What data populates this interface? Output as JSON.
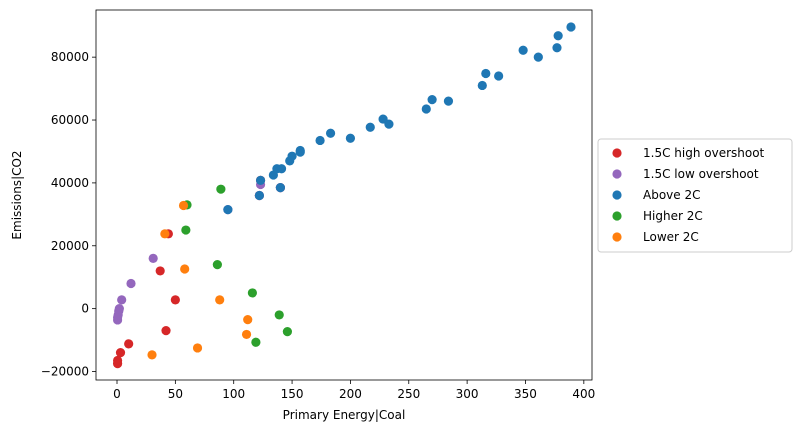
{
  "chart_data": {
    "type": "scatter",
    "title": "",
    "xlabel": "Primary Energy|Coal",
    "ylabel": "Emissions|CO2",
    "xlim": [
      -18,
      407
    ],
    "ylim": [
      -22700,
      95000
    ],
    "xticks": [
      0,
      50,
      100,
      150,
      200,
      250,
      300,
      350,
      400
    ],
    "yticks": [
      -20000,
      0,
      20000,
      40000,
      60000,
      80000
    ],
    "grid": false,
    "legend_position": "center-right outside",
    "series": [
      {
        "name": "1.5C high overshoot",
        "color": "#d62728",
        "points": [
          [
            0.5,
            -17500
          ],
          [
            0.5,
            -16500
          ],
          [
            3,
            -14000
          ],
          [
            10,
            -11200
          ],
          [
            37,
            12000
          ],
          [
            42,
            -7000
          ],
          [
            44,
            23800
          ],
          [
            50,
            2800
          ],
          [
            122,
            36000
          ],
          [
            123,
            40800
          ],
          [
            140,
            38500
          ]
        ]
      },
      {
        "name": "1.5C low overshoot",
        "color": "#9467bd",
        "points": [
          [
            0.5,
            -3600
          ],
          [
            0.5,
            -2800
          ],
          [
            1,
            -2000
          ],
          [
            1.5,
            -800
          ],
          [
            2,
            0
          ],
          [
            4,
            2800
          ],
          [
            12,
            8000
          ],
          [
            31,
            16000
          ],
          [
            95,
            31500
          ],
          [
            122,
            36000
          ],
          [
            123,
            39500
          ],
          [
            140,
            38500
          ]
        ]
      },
      {
        "name": "Above 2C",
        "color": "#1f77b4",
        "points": [
          [
            95,
            31500
          ],
          [
            122,
            36000
          ],
          [
            123,
            40800
          ],
          [
            134,
            42500
          ],
          [
            137,
            44500
          ],
          [
            141,
            44500
          ],
          [
            140,
            38500
          ],
          [
            148,
            47000
          ],
          [
            150,
            48500
          ],
          [
            157,
            49800
          ],
          [
            157,
            50300
          ],
          [
            174,
            53500
          ],
          [
            183,
            55800
          ],
          [
            200,
            54200
          ],
          [
            217,
            57700
          ],
          [
            228,
            60300
          ],
          [
            233,
            58700
          ],
          [
            265,
            63500
          ],
          [
            270,
            66500
          ],
          [
            284,
            66000
          ],
          [
            313,
            71000
          ],
          [
            316,
            74800
          ],
          [
            327,
            74000
          ],
          [
            348,
            82200
          ],
          [
            361,
            80000
          ],
          [
            377,
            83000
          ],
          [
            378,
            86800
          ],
          [
            389,
            89600
          ]
        ]
      },
      {
        "name": "Higher 2C",
        "color": "#2ca02c",
        "points": [
          [
            59,
            25000
          ],
          [
            60,
            33000
          ],
          [
            86,
            14000
          ],
          [
            89,
            38000
          ],
          [
            116,
            5000
          ],
          [
            119,
            -10700
          ],
          [
            139,
            -2000
          ],
          [
            146,
            -7300
          ]
        ]
      },
      {
        "name": "Lower 2C",
        "color": "#ff7f0e",
        "points": [
          [
            30,
            -14700
          ],
          [
            41,
            23800
          ],
          [
            57,
            32800
          ],
          [
            58,
            12600
          ],
          [
            69,
            -12500
          ],
          [
            88,
            2800
          ],
          [
            111,
            -8200
          ],
          [
            112,
            -3500
          ]
        ]
      }
    ]
  }
}
